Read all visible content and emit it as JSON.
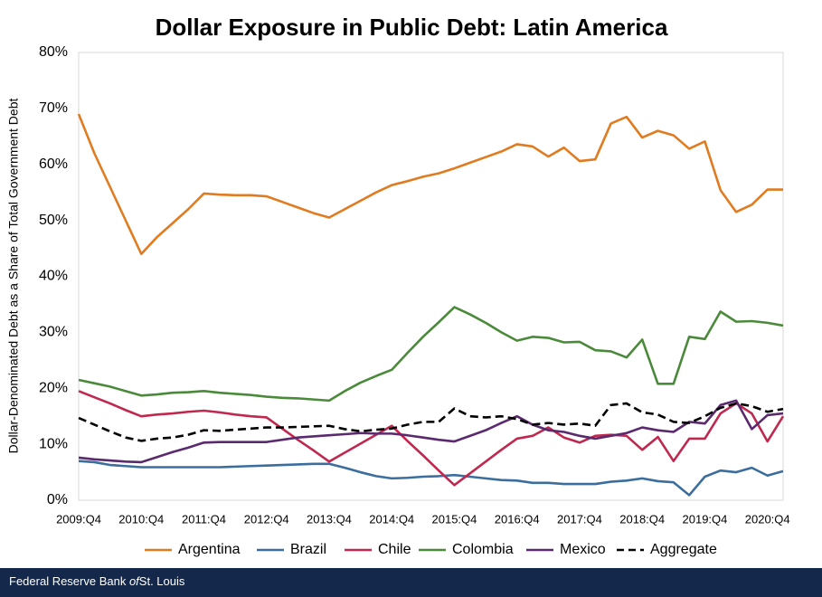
{
  "chart_data": {
    "type": "line",
    "title": "Dollar Exposure in Public Debt: Latin America",
    "y_label": "Dollar-Denominated Debt as a Share of Total Government Debt",
    "categories": [
      "2009:Q4",
      null,
      null,
      null,
      "2010:Q4",
      null,
      null,
      null,
      "2011:Q4",
      null,
      null,
      null,
      "2012:Q4",
      null,
      null,
      null,
      "2013:Q4",
      null,
      null,
      null,
      "2014:Q4",
      null,
      null,
      null,
      "2015:Q4",
      null,
      null,
      null,
      "2016:Q4",
      null,
      null,
      null,
      "2017:Q4",
      null,
      null,
      null,
      "2018:Q4",
      null,
      null,
      null,
      "2019:Q4",
      null,
      null,
      null,
      "2020:Q4",
      null
    ],
    "series": [
      {
        "name": "Argentina",
        "color": "#e07b20",
        "dashed": false,
        "values": [
          69,
          62,
          56,
          50,
          44,
          47,
          49.5,
          52,
          54.8,
          54.6,
          54.5,
          54.5,
          54.3,
          53.3,
          52.3,
          51.3,
          50.5,
          52,
          53.5,
          55,
          56.3,
          57,
          57.8,
          58.4,
          59.3,
          60.3,
          61.3,
          62.3,
          63.6,
          63.2,
          61.4,
          63,
          60.6,
          60.9,
          67.3,
          68.5,
          64.8,
          66,
          65.2,
          62.8,
          64.1,
          55.4,
          51.5,
          52.8,
          55.5,
          55.5
        ]
      },
      {
        "name": "Brazil",
        "color": "#3b6e9e",
        "dashed": false,
        "values": [
          7,
          6.8,
          6.3,
          6.1,
          5.9,
          5.9,
          5.9,
          5.9,
          5.9,
          5.9,
          6,
          6.1,
          6.2,
          6.3,
          6.4,
          6.5,
          6.5,
          5.8,
          5.0,
          4.3,
          3.9,
          4.0,
          4.2,
          4.3,
          4.5,
          4.2,
          3.9,
          3.6,
          3.5,
          3.1,
          3.1,
          2.9,
          2.9,
          2.9,
          3.3,
          3.5,
          3.9,
          3.4,
          3.2,
          0.9,
          4.2,
          5.3,
          5.0,
          5.8,
          4.4,
          5.2
        ]
      },
      {
        "name": "Chile",
        "color": "#c0284f",
        "dashed": false,
        "values": [
          19.5,
          18.4,
          17.3,
          16.1,
          15,
          15.3,
          15.5,
          15.8,
          16,
          15.7,
          15.3,
          15,
          14.8,
          12.8,
          10.8,
          8.9,
          6.9,
          8.5,
          10.1,
          11.7,
          13.3,
          10.6,
          8,
          5.3,
          2.7,
          4.8,
          6.9,
          9,
          11,
          11.5,
          13,
          11.2,
          10.3,
          11.5,
          11.7,
          11.5,
          9,
          11.3,
          7,
          11,
          11,
          15.5,
          17.3,
          15.5,
          10.5,
          15
        ]
      },
      {
        "name": "Colombia",
        "color": "#4a8a3a",
        "dashed": false,
        "values": [
          21.5,
          20.9,
          20.3,
          19.5,
          18.7,
          18.9,
          19.2,
          19.3,
          19.5,
          19.2,
          19,
          18.8,
          18.5,
          18.3,
          18.2,
          18,
          17.8,
          19.5,
          21,
          22.2,
          23.3,
          26.3,
          29.2,
          31.8,
          34.5,
          33.2,
          31.7,
          30,
          28.5,
          29.2,
          29,
          28.2,
          28.3,
          26.8,
          26.6,
          25.5,
          28.7,
          20.8,
          20.8,
          29.2,
          28.8,
          33.7,
          31.9,
          32,
          31.7,
          31.2
        ]
      },
      {
        "name": "Mexico",
        "color": "#5b2a6e",
        "dashed": false,
        "values": [
          7.6,
          7.3,
          7.1,
          6.9,
          6.8,
          7.7,
          8.6,
          9.4,
          10.3,
          10.4,
          10.4,
          10.4,
          10.4,
          10.8,
          11.2,
          11.4,
          11.6,
          11.8,
          12,
          11.9,
          11.9,
          11.6,
          11.2,
          10.8,
          10.5,
          11.5,
          12.5,
          13.8,
          15,
          13.5,
          12.5,
          12.2,
          11.5,
          11,
          11.5,
          12,
          13,
          12.5,
          12.2,
          14,
          13.7,
          17,
          17.8,
          12.7,
          15.2,
          15.5
        ]
      },
      {
        "name": "Aggregate",
        "color": "#000000",
        "dashed": true,
        "values": [
          14.7,
          13.5,
          12.3,
          11.2,
          10.6,
          11,
          11.2,
          11.7,
          12.5,
          12.4,
          12.6,
          12.8,
          13,
          13,
          13.1,
          13.2,
          13.3,
          12.7,
          12.3,
          12.6,
          12.8,
          13.5,
          14,
          14,
          16.4,
          15,
          14.8,
          15,
          14.5,
          13.5,
          13.8,
          13.5,
          13.7,
          13.3,
          17,
          17.3,
          15.7,
          15.3,
          14,
          13.8,
          15,
          16.5,
          17.3,
          16.8,
          15.8,
          16.3
        ]
      }
    ],
    "ylim": [
      0,
      80
    ],
    "yticks": [
      {
        "value": 0,
        "label": "0%"
      },
      {
        "value": 10,
        "label": "10%"
      },
      {
        "value": 20,
        "label": "20%"
      },
      {
        "value": 30,
        "label": "30%"
      },
      {
        "value": 40,
        "label": "40%"
      },
      {
        "value": 50,
        "label": "50%"
      },
      {
        "value": 60,
        "label": "60%"
      },
      {
        "value": 70,
        "label": "70%"
      },
      {
        "value": 80,
        "label": "80%"
      }
    ],
    "grid": false,
    "legend": "bottom"
  },
  "footer": {
    "before": "Federal Reserve Bank ",
    "italic": "of",
    "after": "St. Louis"
  }
}
